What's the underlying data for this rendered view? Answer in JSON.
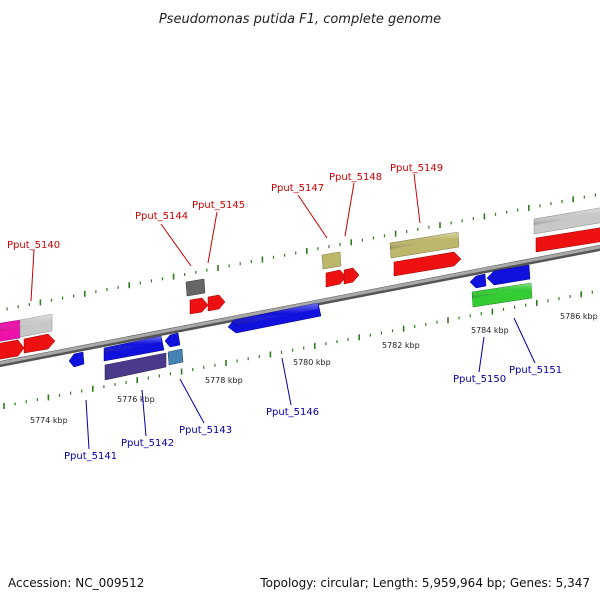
{
  "title": "Pseudomonas putida F1, complete genome",
  "footer": {
    "accession": "Accession: NC_009512",
    "summary": "Topology: circular; Length: 5,959,964 bp; Genes: 5,347"
  },
  "colors": {
    "axis": "#8a8a8a",
    "tick": "#2e7d1e",
    "label_up": "#cc0000",
    "label_down": "#0000aa",
    "red": "#ee1111",
    "blue": "#1111dd",
    "green": "#33cc33",
    "olive": "#bdb76b",
    "gray": "#c0c0c0",
    "darkgray": "#666666",
    "magenta": "#ee11aa",
    "purple": "#4b3a8c",
    "steelblue": "#4682b4"
  },
  "scale_kbp": [
    5774,
    5776,
    5778,
    5780,
    5782,
    5784,
    5786
  ],
  "tick_labels": [
    "5774 kbp",
    "5776 kbp",
    "5778 kbp",
    "5780 kbp",
    "5782 kbp",
    "5784 kbp",
    "5786 kbp"
  ],
  "gene_labels_up": [
    "Pput_5140",
    "Pput_5144",
    "Pput_5145",
    "Pput_5147",
    "Pput_5148",
    "Pput_5149"
  ],
  "gene_labels_down": [
    "Pput_5141",
    "Pput_5142",
    "Pput_5143",
    "Pput_5146",
    "Pput_5150",
    "Pput_5151"
  ]
}
